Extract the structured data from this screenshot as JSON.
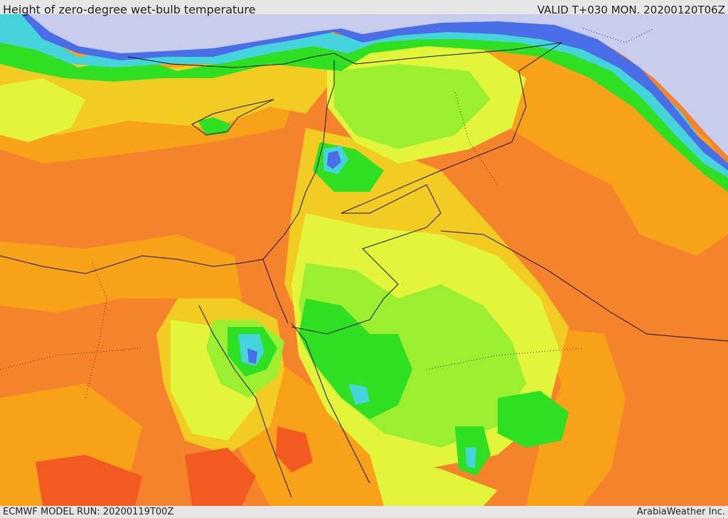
{
  "header": {
    "title": "Height of zero-degree wet-bulb temperature",
    "valid": "VALID T+030 MON. 20200120T06Z"
  },
  "footer": {
    "model_run": "ECMWF MODEL RUN: 20200119T00Z",
    "credit": "ArabiaWeather Inc."
  },
  "map": {
    "region": "Eastern Mediterranean, Egypt, Levant, Iraq and northern Arabia",
    "palette": {
      "sea_north": "#c8cdee",
      "blue": "#4a6ee8",
      "cyan": "#45d3dc",
      "green": "#2ee021",
      "light_green": "#9bef30",
      "yellow_green": "#e2f53a",
      "yellow": "#f3cc23",
      "orange": "#f8a21a",
      "dark_orange": "#f5832c",
      "red_orange": "#f25a22",
      "border": "#111111"
    }
  }
}
